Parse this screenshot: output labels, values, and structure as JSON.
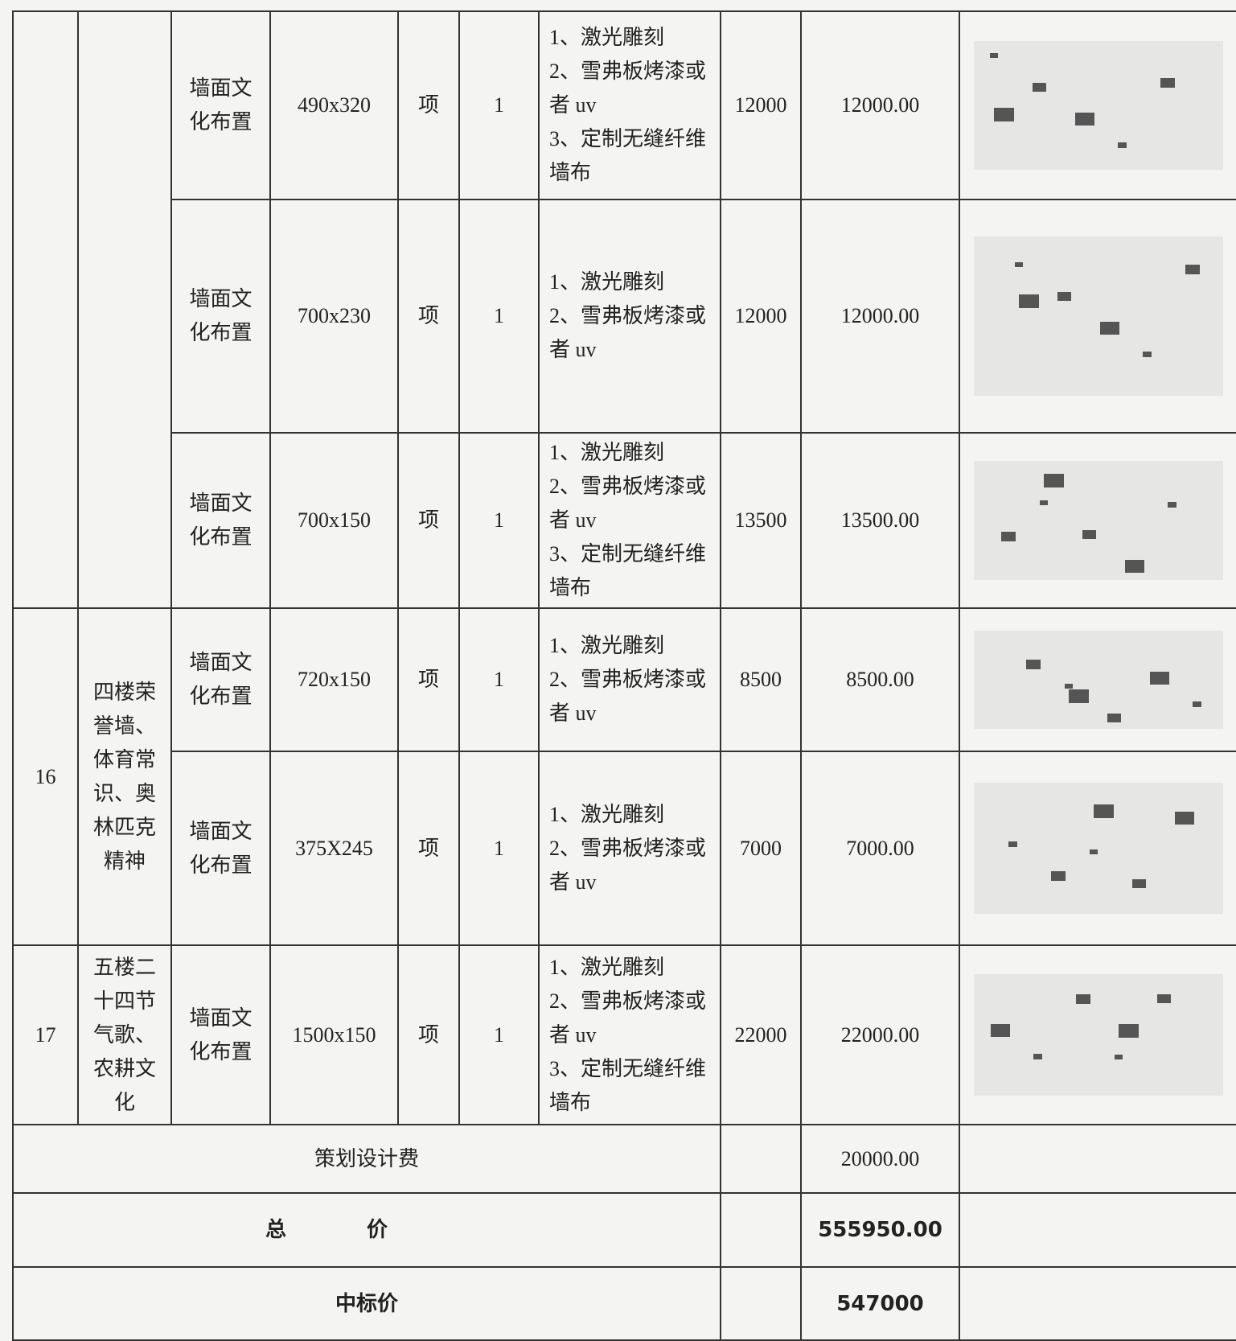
{
  "table": {
    "groups": [
      {
        "rows": [
          {
            "item": "墙面文化布置",
            "size": "490x320",
            "unit": "项",
            "qty": "1",
            "desc": [
              "1、激光雕刻",
              "2、雪弗板烤漆或者 uv",
              "3、定制无缝纤维墙布"
            ],
            "price": "12000",
            "total": "12000.00"
          },
          {
            "item": "墙面文化布置",
            "size": "700x230",
            "unit": "项",
            "qty": "1",
            "desc": [
              "1、激光雕刻",
              "2、雪弗板烤漆或者 uv"
            ],
            "price": "12000",
            "total": "12000.00"
          },
          {
            "item": "墙面文化布置",
            "size": "700x150",
            "unit": "项",
            "qty": "1",
            "desc": [
              "1、激光雕刻",
              "2、雪弗板烤漆或者 uv",
              "3、定制无缝纤维墙布"
            ],
            "price": "13500",
            "total": "13500.00"
          }
        ]
      },
      {
        "number": "16",
        "name": "四楼荣誉墙、体育常识、奥林匹克精神",
        "rows": [
          {
            "item": "墙面文化布置",
            "size": "720x150",
            "unit": "项",
            "qty": "1",
            "desc": [
              "1、激光雕刻",
              "2、雪弗板烤漆或者 uv"
            ],
            "price": "8500",
            "total": "8500.00"
          },
          {
            "item": "墙面文化布置",
            "size": "375X245",
            "unit": "项",
            "qty": "1",
            "desc": [
              "1、激光雕刻",
              "2、雪弗板烤漆或者 uv"
            ],
            "price": "7000",
            "total": "7000.00"
          }
        ]
      },
      {
        "number": "17",
        "name": "五楼二十四节气歌、农耕文化",
        "rows": [
          {
            "item": "墙面文化布置",
            "size": "1500x150",
            "unit": "项",
            "qty": "1",
            "desc": [
              "1、激光雕刻",
              "2、雪弗板烤漆或者 uv",
              "3、定制无缝纤维墙布"
            ],
            "price": "22000",
            "total": "22000.00"
          }
        ]
      }
    ],
    "summary": [
      {
        "label": "策划设计费",
        "total": "20000.00"
      },
      {
        "label": "总价",
        "total": "555950.00"
      },
      {
        "label": "中标价",
        "total": "547000"
      }
    ]
  }
}
